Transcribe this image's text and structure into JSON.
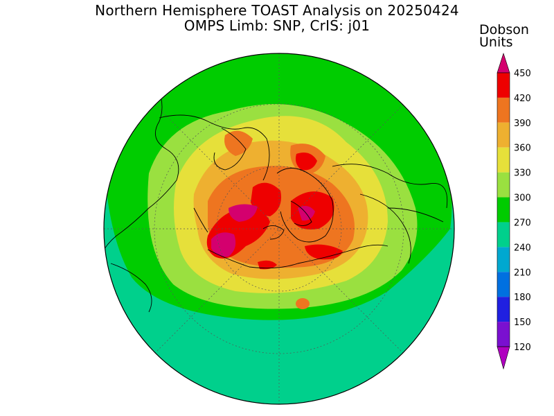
{
  "title": {
    "line1": "Northern Hemisphere TOAST Analysis on 20250424",
    "line2": "OMPS Limb: SNP, CrIS: j01"
  },
  "colorbar": {
    "unit_line1": "Dobson",
    "unit_line2": "Units",
    "levels": [
      {
        "value": "450",
        "color": "#d4006e"
      },
      {
        "value": "420",
        "color": "#ee0000"
      },
      {
        "value": "390",
        "color": "#ee7520"
      },
      {
        "value": "360",
        "color": "#eeb030"
      },
      {
        "value": "330",
        "color": "#e6e03a"
      },
      {
        "value": "300",
        "color": "#9ae040"
      },
      {
        "value": "270",
        "color": "#00cc00"
      },
      {
        "value": "240",
        "color": "#00d08c"
      },
      {
        "value": "210",
        "color": "#00a8d0"
      },
      {
        "value": "180",
        "color": "#0070e0"
      },
      {
        "value": "150",
        "color": "#2020e0"
      },
      {
        "value": "120",
        "color": "#7a10d0"
      }
    ],
    "bottom_color": "#b000c0",
    "top_color": "#d4006e"
  },
  "map": {
    "projection": "polar-stereographic",
    "hemisphere": "northern",
    "field": "total column ozone"
  }
}
